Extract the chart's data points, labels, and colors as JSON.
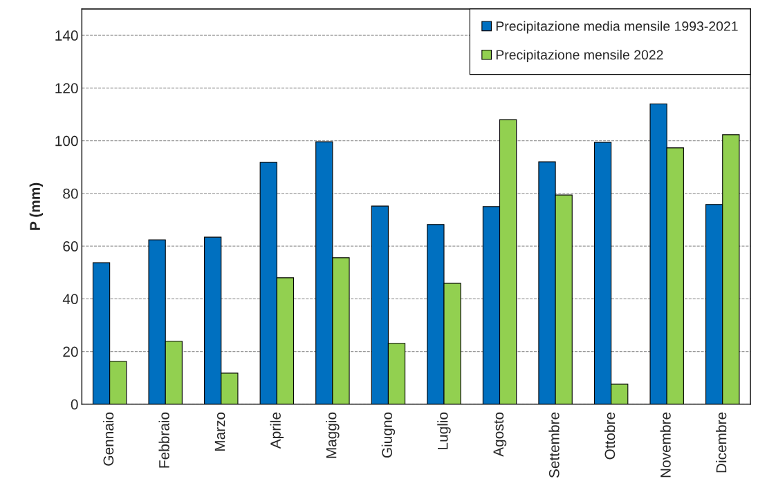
{
  "chart_data": {
    "type": "bar",
    "ylabel": "P (mm)",
    "categories": [
      "Gennaio",
      "Febbraio",
      "Marzo",
      "Aprile",
      "Maggio",
      "Giugno",
      "Luglio",
      "Agosto",
      "Settembre",
      "Ottobre",
      "Novembre",
      "Dicembre"
    ],
    "series": [
      {
        "name": "Precipitazione media mensile 1993-2021",
        "color": "#0070c0",
        "values": [
          53.7,
          62.4,
          63.4,
          91.8,
          99.6,
          75.2,
          68.2,
          75.0,
          92.0,
          99.4,
          114.0,
          75.8
        ]
      },
      {
        "name": "Precipitazione mensile 2022",
        "color": "#92d050",
        "values": [
          16.3,
          23.9,
          11.8,
          48.0,
          55.6,
          23.1,
          45.9,
          108.0,
          79.4,
          7.6,
          97.3,
          102.3
        ]
      }
    ],
    "ylim": [
      0,
      150
    ],
    "yticks": [
      0,
      20,
      40,
      60,
      80,
      100,
      120,
      140
    ],
    "grid": "y",
    "legend": "top right"
  }
}
